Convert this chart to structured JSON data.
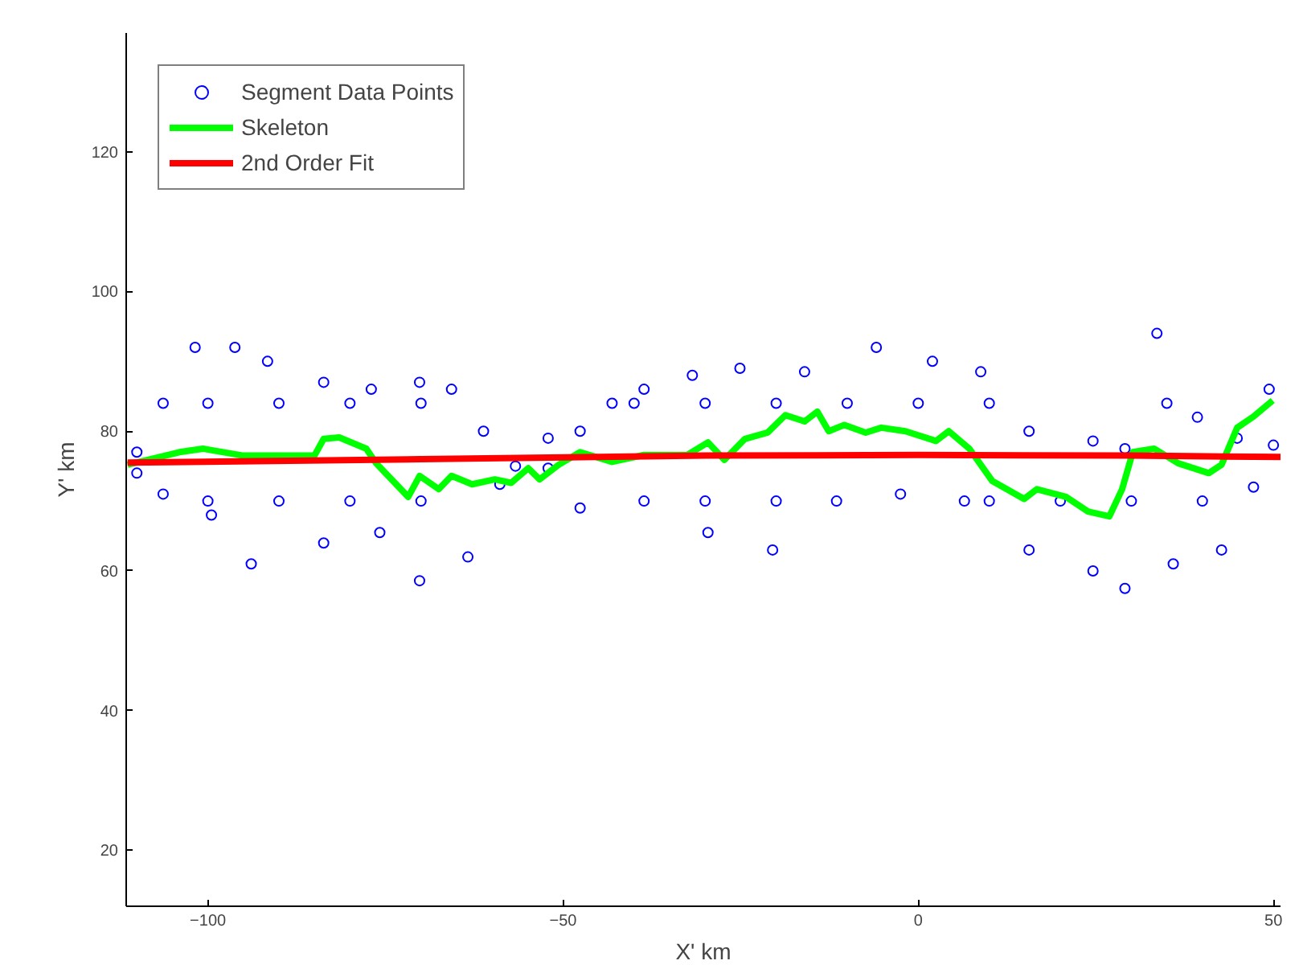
{
  "chart_data": {
    "type": "scatter",
    "xlabel": "X' km",
    "ylabel": "Y' km",
    "xlim": [
      -111.5,
      51
    ],
    "ylim": [
      12,
      137
    ],
    "xticks": [
      -100,
      -50,
      0,
      50
    ],
    "yticks": [
      20,
      40,
      60,
      80,
      100,
      120
    ],
    "grid": false,
    "legend": "top left",
    "series": [
      {
        "name": "Segment Data Points",
        "marker": "circle",
        "color": "#0000ff",
        "x": [
          -110,
          -106.3,
          -101.8,
          -96.2,
          -91.6,
          -83.7,
          -77.0,
          -70.2,
          -65.7,
          -61.2,
          -56.7,
          -52.1,
          -47.6,
          -43.1,
          -38.6,
          -31.8,
          -25.1,
          -16.0,
          -5.9,
          2.0,
          8.8,
          15.6,
          24.6,
          29.1,
          33.6,
          39.3,
          44.9,
          49.4,
          -110,
          -106.3,
          -99.5,
          -93.9,
          -83.7,
          -75.8,
          -70.2,
          -63.4,
          -58.9,
          -52.1,
          -47.6,
          -38.6,
          -29.6,
          -20.5,
          -11.5,
          -2.5,
          6.5,
          15.6,
          24.6,
          29.1,
          35.9,
          42.7,
          47.2,
          50,
          -100,
          -90,
          -80,
          -70,
          -30,
          -20,
          10,
          20,
          30,
          40,
          -100,
          -90,
          -80,
          -70,
          -40,
          -30,
          -20,
          -10,
          0,
          10,
          35
        ],
        "values": [
          77,
          84,
          92,
          92,
          90,
          87,
          86,
          87,
          86,
          80,
          75,
          79,
          80,
          84,
          86,
          88,
          89,
          88.5,
          92,
          90,
          88.5,
          80,
          78.6,
          77.5,
          94,
          82,
          79,
          86,
          74,
          71,
          68,
          61,
          64,
          65.5,
          58.6,
          62,
          72.4,
          74.7,
          69,
          70,
          65.5,
          63,
          70,
          71,
          70,
          63,
          60,
          57.5,
          61,
          63,
          72,
          78,
          70,
          70,
          70,
          70,
          70,
          70,
          70,
          70,
          70,
          70,
          84,
          84,
          84,
          84,
          84,
          84,
          84,
          84,
          84,
          84,
          84
        ]
      },
      {
        "name": "Skeleton",
        "type": "line",
        "color": "#00ff00",
        "x": [
          -111.3,
          -104,
          -100.7,
          -95,
          -85,
          -83.7,
          -81.5,
          -77.7,
          -76.3,
          -71.8,
          -70.2,
          -67.5,
          -65.7,
          -62.8,
          -59.6,
          -57.3,
          -54.9,
          -53.3,
          -50.6,
          -47.6,
          -43.1,
          -38.6,
          -32.5,
          -29.6,
          -27.3,
          -24.4,
          -21.2,
          -18.7,
          -16.0,
          -14.2,
          -12.6,
          -10.4,
          -7.4,
          -5.2,
          -1.8,
          2.5,
          4.3,
          7.2,
          10.4,
          14.9,
          16.7,
          20.8,
          23.9,
          26.9,
          28.7,
          30.2,
          33.2,
          36.6,
          40.9,
          42.7,
          44.9,
          47.2,
          49.9
        ],
        "values": [
          75.2,
          77,
          77.5,
          76.5,
          76.5,
          78.9,
          79.1,
          77.5,
          75.4,
          70.6,
          73.6,
          71.7,
          73.6,
          72.4,
          73.1,
          72.6,
          74.7,
          73.1,
          75.2,
          77.0,
          75.6,
          76.6,
          76.6,
          78.4,
          75.9,
          78.9,
          79.8,
          82.3,
          81.4,
          82.8,
          80.0,
          80.9,
          79.8,
          80.5,
          80.0,
          78.6,
          80.0,
          77.5,
          72.9,
          70.3,
          71.7,
          70.6,
          68.5,
          67.8,
          71.7,
          77.0,
          77.5,
          75.4,
          74.0,
          75.2,
          80.5,
          82.1,
          84.4
        ]
      },
      {
        "name": "2nd Order Fit",
        "type": "line",
        "color": "#ff0000",
        "x": [
          -111.3,
          -70,
          -30,
          0,
          30,
          51
        ],
        "values": [
          75.5,
          76.0,
          76.5,
          76.6,
          76.5,
          76.3
        ]
      }
    ]
  }
}
